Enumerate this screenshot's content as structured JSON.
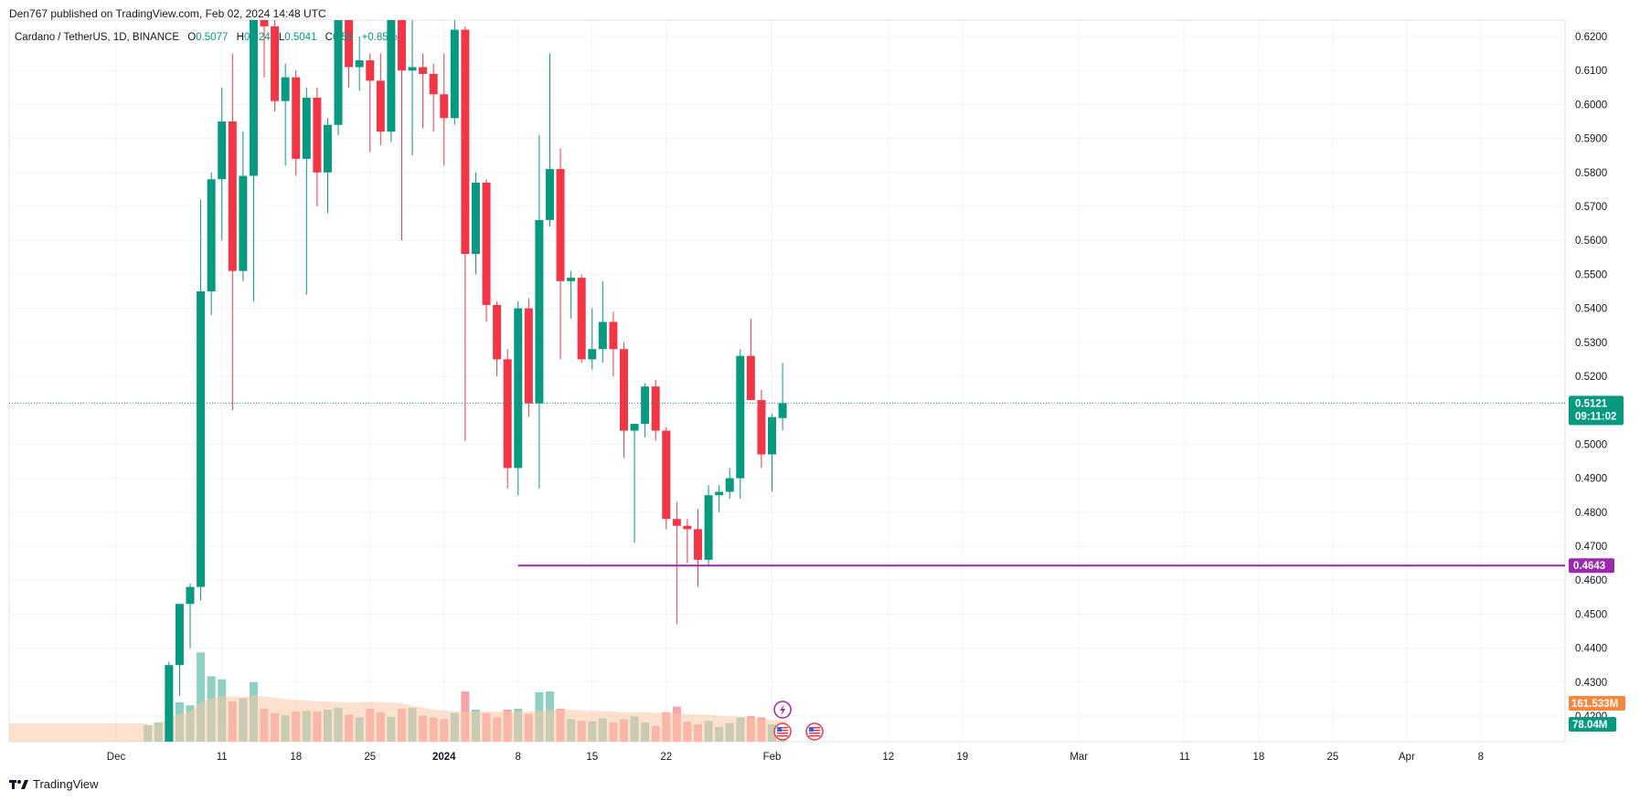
{
  "header": {
    "published": "Den767 published on TradingView.com, Feb 02, 2024 14:48 UTC",
    "symbol": "Cardano / TetherUS, 1D, BINANCE",
    "o_label": "O",
    "o_value": "0.5077",
    "h_label": "H",
    "h_value": "0.524",
    "l_label": "L",
    "l_value": "0.5041",
    "c_label": "C",
    "c_value": "0.51",
    "change": "+0.85%"
  },
  "footer": {
    "brand": "TradingView"
  },
  "colors": {
    "up": "#089981",
    "down": "#f23645",
    "support": "#9c27b0",
    "vol_up": "#8ed0c4",
    "vol_down": "#f7a3a9",
    "vol_ma": "#f9c9a6",
    "grid": "#f0f3fa"
  },
  "chart_data": {
    "type": "candlestick",
    "pair": "Cardano / TetherUS",
    "interval": "1D",
    "exchange": "BINANCE",
    "y_ticks": [
      "0.6200",
      "0.6100",
      "0.6000",
      "0.5900",
      "0.5800",
      "0.5700",
      "0.5600",
      "0.5500",
      "0.5400",
      "0.5300",
      "0.5200",
      "0.5000",
      "0.4900",
      "0.4800",
      "0.4700",
      "0.4600",
      "0.4500",
      "0.4400",
      "0.4300",
      "0.4200"
    ],
    "ylim": [
      0.41,
      0.625
    ],
    "x_labels": [
      {
        "label": "Dec",
        "date": "2023-12-01"
      },
      {
        "label": "11",
        "date": "2023-12-11"
      },
      {
        "label": "18",
        "date": "2023-12-18"
      },
      {
        "label": "25",
        "date": "2023-12-25"
      },
      {
        "label": "2024",
        "date": "2024-01-01"
      },
      {
        "label": "8",
        "date": "2024-01-08"
      },
      {
        "label": "15",
        "date": "2024-01-15"
      },
      {
        "label": "22",
        "date": "2024-01-22"
      },
      {
        "label": "Feb",
        "date": "2024-02-01"
      },
      {
        "label": "12",
        "date": "2024-02-12"
      },
      {
        "label": "19",
        "date": "2024-02-19"
      },
      {
        "label": "Mar",
        "date": "2024-03-01"
      },
      {
        "label": "11",
        "date": "2024-03-11"
      },
      {
        "label": "18",
        "date": "2024-03-18"
      },
      {
        "label": "25",
        "date": "2024-03-25"
      },
      {
        "label": "Apr",
        "date": "2024-04-01"
      },
      {
        "label": "8",
        "date": "2024-04-08"
      }
    ],
    "candles": [
      {
        "date": "2023-12-04",
        "o": 0.388,
        "h": 0.4,
        "l": 0.385,
        "c": 0.395,
        "v": 42
      },
      {
        "date": "2023-12-05",
        "o": 0.395,
        "h": 0.402,
        "l": 0.388,
        "c": 0.4,
        "v": 48
      },
      {
        "date": "2023-12-06",
        "o": 0.4,
        "h": 0.436,
        "l": 0.396,
        "c": 0.435,
        "v": 90
      },
      {
        "date": "2023-12-07",
        "o": 0.435,
        "h": 0.453,
        "l": 0.426,
        "c": 0.453,
        "v": 95
      },
      {
        "date": "2023-12-08",
        "o": 0.453,
        "h": 0.459,
        "l": 0.44,
        "c": 0.458,
        "v": 88
      },
      {
        "date": "2023-12-09",
        "o": 0.458,
        "h": 0.572,
        "l": 0.454,
        "c": 0.545,
        "v": 210
      },
      {
        "date": "2023-12-10",
        "o": 0.545,
        "h": 0.58,
        "l": 0.538,
        "c": 0.578,
        "v": 155
      },
      {
        "date": "2023-12-11",
        "o": 0.578,
        "h": 0.605,
        "l": 0.56,
        "c": 0.595,
        "v": 148
      },
      {
        "date": "2023-12-12",
        "o": 0.595,
        "h": 0.615,
        "l": 0.51,
        "c": 0.551,
        "v": 97
      },
      {
        "date": "2023-12-13",
        "o": 0.551,
        "h": 0.592,
        "l": 0.548,
        "c": 0.579,
        "v": 104
      },
      {
        "date": "2023-12-14",
        "o": 0.579,
        "h": 0.63,
        "l": 0.542,
        "c": 0.625,
        "v": 141
      },
      {
        "date": "2023-12-15",
        "o": 0.625,
        "h": 0.64,
        "l": 0.608,
        "c": 0.623,
        "v": 80
      },
      {
        "date": "2023-12-16",
        "o": 0.623,
        "h": 0.64,
        "l": 0.598,
        "c": 0.601,
        "v": 70
      },
      {
        "date": "2023-12-17",
        "o": 0.601,
        "h": 0.612,
        "l": 0.582,
        "c": 0.608,
        "v": 65
      },
      {
        "date": "2023-12-18",
        "o": 0.608,
        "h": 0.61,
        "l": 0.579,
        "c": 0.584,
        "v": 74
      },
      {
        "date": "2023-12-19",
        "o": 0.584,
        "h": 0.605,
        "l": 0.544,
        "c": 0.602,
        "v": 75
      },
      {
        "date": "2023-12-20",
        "o": 0.602,
        "h": 0.605,
        "l": 0.57,
        "c": 0.58,
        "v": 73
      },
      {
        "date": "2023-12-21",
        "o": 0.58,
        "h": 0.596,
        "l": 0.568,
        "c": 0.594,
        "v": 78
      },
      {
        "date": "2023-12-22",
        "o": 0.594,
        "h": 0.635,
        "l": 0.591,
        "c": 0.63,
        "v": 82
      },
      {
        "date": "2023-12-23",
        "o": 0.63,
        "h": 0.64,
        "l": 0.605,
        "c": 0.611,
        "v": 66
      },
      {
        "date": "2023-12-24",
        "o": 0.611,
        "h": 0.62,
        "l": 0.604,
        "c": 0.613,
        "v": 60
      },
      {
        "date": "2023-12-25",
        "o": 0.613,
        "h": 0.615,
        "l": 0.586,
        "c": 0.607,
        "v": 80
      },
      {
        "date": "2023-12-26",
        "o": 0.607,
        "h": 0.615,
        "l": 0.588,
        "c": 0.592,
        "v": 72
      },
      {
        "date": "2023-12-27",
        "o": 0.592,
        "h": 0.633,
        "l": 0.589,
        "c": 0.63,
        "v": 61
      },
      {
        "date": "2023-12-28",
        "o": 0.63,
        "h": 0.64,
        "l": 0.56,
        "c": 0.61,
        "v": 80
      },
      {
        "date": "2023-12-29",
        "o": 0.61,
        "h": 0.63,
        "l": 0.585,
        "c": 0.611,
        "v": 82
      },
      {
        "date": "2023-12-30",
        "o": 0.611,
        "h": 0.615,
        "l": 0.593,
        "c": 0.609,
        "v": 64
      },
      {
        "date": "2023-12-31",
        "o": 0.609,
        "h": 0.612,
        "l": 0.592,
        "c": 0.603,
        "v": 60
      },
      {
        "date": "2024-01-01",
        "o": 0.603,
        "h": 0.615,
        "l": 0.582,
        "c": 0.596,
        "v": 56
      },
      {
        "date": "2024-01-02",
        "o": 0.596,
        "h": 0.625,
        "l": 0.594,
        "c": 0.622,
        "v": 70
      },
      {
        "date": "2024-01-03",
        "o": 0.622,
        "h": 0.623,
        "l": 0.501,
        "c": 0.556,
        "v": 120
      },
      {
        "date": "2024-01-04",
        "o": 0.556,
        "h": 0.58,
        "l": 0.55,
        "c": 0.577,
        "v": 78
      },
      {
        "date": "2024-01-05",
        "o": 0.577,
        "h": 0.578,
        "l": 0.536,
        "c": 0.541,
        "v": 70
      },
      {
        "date": "2024-01-06",
        "o": 0.541,
        "h": 0.542,
        "l": 0.52,
        "c": 0.525,
        "v": 60
      },
      {
        "date": "2024-01-07",
        "o": 0.525,
        "h": 0.528,
        "l": 0.487,
        "c": 0.493,
        "v": 78
      },
      {
        "date": "2024-01-08",
        "o": 0.493,
        "h": 0.542,
        "l": 0.485,
        "c": 0.54,
        "v": 80
      },
      {
        "date": "2024-01-09",
        "o": 0.54,
        "h": 0.543,
        "l": 0.508,
        "c": 0.512,
        "v": 68
      },
      {
        "date": "2024-01-10",
        "o": 0.512,
        "h": 0.591,
        "l": 0.487,
        "c": 0.566,
        "v": 118
      },
      {
        "date": "2024-01-11",
        "o": 0.566,
        "h": 0.615,
        "l": 0.564,
        "c": 0.581,
        "v": 120
      },
      {
        "date": "2024-01-12",
        "o": 0.581,
        "h": 0.587,
        "l": 0.525,
        "c": 0.548,
        "v": 80
      },
      {
        "date": "2024-01-13",
        "o": 0.548,
        "h": 0.551,
        "l": 0.537,
        "c": 0.549,
        "v": 56
      },
      {
        "date": "2024-01-14",
        "o": 0.549,
        "h": 0.55,
        "l": 0.524,
        "c": 0.525,
        "v": 52
      },
      {
        "date": "2024-01-15",
        "o": 0.525,
        "h": 0.54,
        "l": 0.522,
        "c": 0.528,
        "v": 51
      },
      {
        "date": "2024-01-16",
        "o": 0.528,
        "h": 0.548,
        "l": 0.524,
        "c": 0.536,
        "v": 58
      },
      {
        "date": "2024-01-17",
        "o": 0.536,
        "h": 0.539,
        "l": 0.52,
        "c": 0.528,
        "v": 48
      },
      {
        "date": "2024-01-18",
        "o": 0.528,
        "h": 0.53,
        "l": 0.496,
        "c": 0.504,
        "v": 56
      },
      {
        "date": "2024-01-19",
        "o": 0.504,
        "h": 0.506,
        "l": 0.471,
        "c": 0.506,
        "v": 62
      },
      {
        "date": "2024-01-20",
        "o": 0.506,
        "h": 0.518,
        "l": 0.502,
        "c": 0.517,
        "v": 48
      },
      {
        "date": "2024-01-21",
        "o": 0.517,
        "h": 0.519,
        "l": 0.501,
        "c": 0.504,
        "v": 40
      },
      {
        "date": "2024-01-22",
        "o": 0.504,
        "h": 0.505,
        "l": 0.475,
        "c": 0.478,
        "v": 72
      },
      {
        "date": "2024-01-23",
        "o": 0.478,
        "h": 0.483,
        "l": 0.447,
        "c": 0.476,
        "v": 85
      },
      {
        "date": "2024-01-24",
        "o": 0.476,
        "h": 0.478,
        "l": 0.465,
        "c": 0.475,
        "v": 50
      },
      {
        "date": "2024-01-25",
        "o": 0.475,
        "h": 0.481,
        "l": 0.458,
        "c": 0.466,
        "v": 44
      },
      {
        "date": "2024-01-26",
        "o": 0.466,
        "h": 0.488,
        "l": 0.464,
        "c": 0.485,
        "v": 52
      },
      {
        "date": "2024-01-27",
        "o": 0.485,
        "h": 0.488,
        "l": 0.48,
        "c": 0.486,
        "v": 38
      },
      {
        "date": "2024-01-28",
        "o": 0.486,
        "h": 0.493,
        "l": 0.484,
        "c": 0.49,
        "v": 47
      },
      {
        "date": "2024-01-29",
        "o": 0.49,
        "h": 0.528,
        "l": 0.484,
        "c": 0.526,
        "v": 60
      },
      {
        "date": "2024-01-30",
        "o": 0.526,
        "h": 0.537,
        "l": 0.513,
        "c": 0.513,
        "v": 63
      },
      {
        "date": "2024-01-31",
        "o": 0.513,
        "h": 0.516,
        "l": 0.493,
        "c": 0.497,
        "v": 60
      },
      {
        "date": "2024-02-01",
        "o": 0.497,
        "h": 0.509,
        "l": 0.486,
        "c": 0.508,
        "v": 44
      },
      {
        "date": "2024-02-02",
        "o": 0.5077,
        "h": 0.524,
        "l": 0.5041,
        "c": 0.5121,
        "v": 30
      }
    ],
    "support_line": {
      "start_date": "2024-01-08",
      "price": 0.4643,
      "label": "0.4643"
    },
    "last_price": {
      "label": "0.5121",
      "countdown": "09:11:02"
    },
    "volume_labels": {
      "ma": "161.533M",
      "last": "78.04M"
    },
    "grid": true
  }
}
